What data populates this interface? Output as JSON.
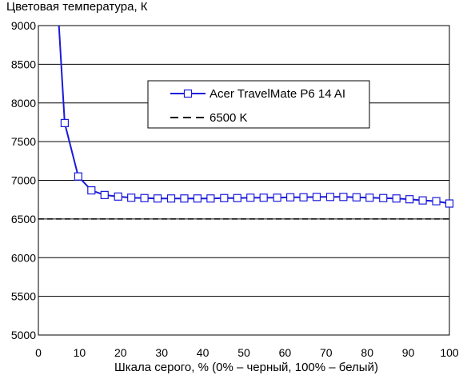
{
  "chart_data": {
    "type": "line",
    "title": "",
    "ylabel": "Цветовая температура, К",
    "xlabel": "Шкала серого, % (0% – черный, 100% – белый)",
    "xlim": [
      0,
      100
    ],
    "ylim": [
      5000,
      9000
    ],
    "xticks": [
      0,
      10,
      20,
      30,
      40,
      50,
      60,
      70,
      80,
      90,
      100
    ],
    "yticks": [
      5000,
      5500,
      6000,
      6500,
      7000,
      7500,
      8000,
      8500,
      9000
    ],
    "grid": "horizontal",
    "legend_position": "top-center",
    "series": [
      {
        "name": "Acer TravelMate P6 14 AI",
        "color": "#1a1adc",
        "marker": "square",
        "x": [
          5,
          6.4,
          9.7,
          12.9,
          16.1,
          19.4,
          22.6,
          25.8,
          29,
          32.3,
          35.5,
          38.7,
          41.9,
          45.2,
          48.4,
          51.6,
          54.8,
          58.1,
          61.3,
          64.5,
          67.7,
          71,
          74.2,
          77.4,
          80.6,
          83.9,
          87.1,
          90.3,
          93.5,
          96.8,
          100
        ],
        "y": [
          9000,
          7740,
          7050,
          6870,
          6810,
          6790,
          6775,
          6770,
          6765,
          6765,
          6765,
          6765,
          6765,
          6770,
          6770,
          6775,
          6775,
          6775,
          6780,
          6780,
          6785,
          6785,
          6785,
          6780,
          6775,
          6770,
          6765,
          6755,
          6740,
          6730,
          6700
        ],
        "marker_from_index": 1
      },
      {
        "name": "6500 K",
        "color": "#000000",
        "dash": true,
        "x": [
          0,
          100
        ],
        "y": [
          6500,
          6500
        ]
      }
    ]
  }
}
